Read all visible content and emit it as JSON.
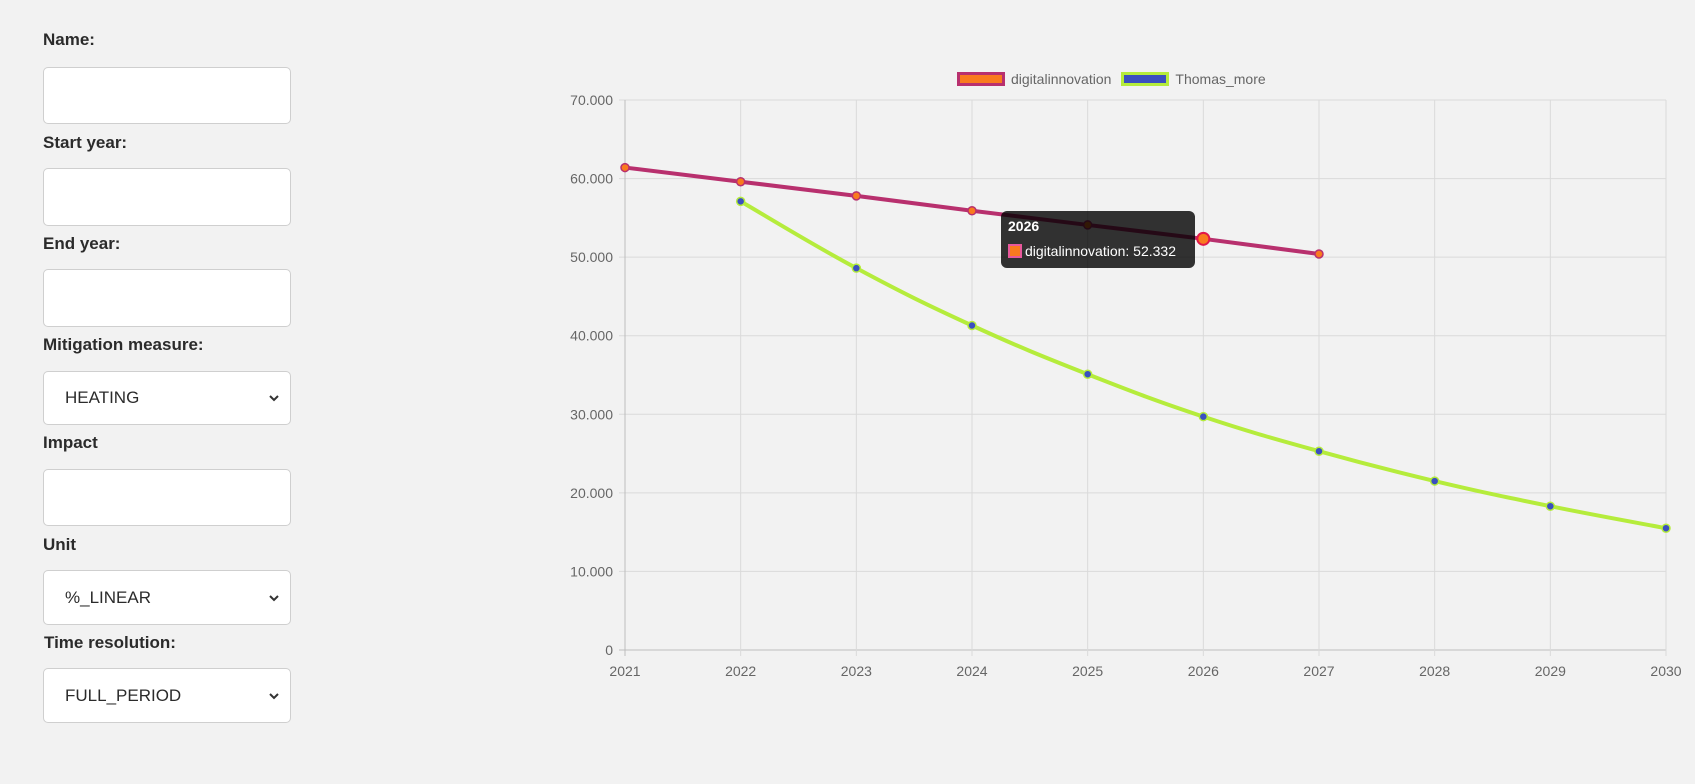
{
  "form": {
    "name": {
      "label": "Name:",
      "value": ""
    },
    "start_year": {
      "label": "Start year:",
      "value": ""
    },
    "end_year": {
      "label": "End year:",
      "value": ""
    },
    "mitigation_measure": {
      "label": "Mitigation measure:",
      "selected": "HEATING"
    },
    "impact": {
      "label": "Impact",
      "value": ""
    },
    "unit": {
      "label": "Unit",
      "selected": "%_LINEAR"
    },
    "time_resolution": {
      "label": "Time resolution:",
      "selected": "FULL_PERIOD"
    }
  },
  "chart": {
    "legend": [
      {
        "label": "digitalinnovation",
        "fill": "#f97a1e",
        "border": "#b8306e"
      },
      {
        "label": "Thomas_more",
        "fill": "#3a4fc0",
        "border": "#b5ec3c"
      }
    ],
    "tooltip": {
      "title": "2026",
      "label": "digitalinnovation: 52.332"
    }
  },
  "chart_data": {
    "type": "line",
    "title": "",
    "xlabel": "",
    "ylabel": "",
    "x": [
      "2021",
      "2022",
      "2023",
      "2024",
      "2025",
      "2026",
      "2027",
      "2028",
      "2029",
      "2030"
    ],
    "y_ticks": [
      "0",
      "10.000",
      "20.000",
      "30.000",
      "40.000",
      "50.000",
      "60.000",
      "70.000"
    ],
    "ylim": [
      0,
      70
    ],
    "grid": true,
    "legend_position": "top",
    "series": [
      {
        "name": "digitalinnovation",
        "line_color": "#b8306e",
        "point_color": "#f97a1e",
        "values": [
          61.4,
          59.6,
          57.8,
          55.9,
          54.1,
          52.332,
          50.4,
          null,
          null,
          null
        ]
      },
      {
        "name": "Thomas_more",
        "line_color": "#b5ec3c",
        "point_color": "#3a4fc0",
        "values": [
          null,
          57.1,
          48.6,
          41.3,
          35.1,
          29.7,
          25.3,
          21.5,
          18.3,
          15.5
        ]
      }
    ],
    "annotations": [
      {
        "type": "tooltip",
        "x": "2026",
        "series": "digitalinnovation",
        "text": "digitalinnovation: 52.332"
      }
    ]
  }
}
